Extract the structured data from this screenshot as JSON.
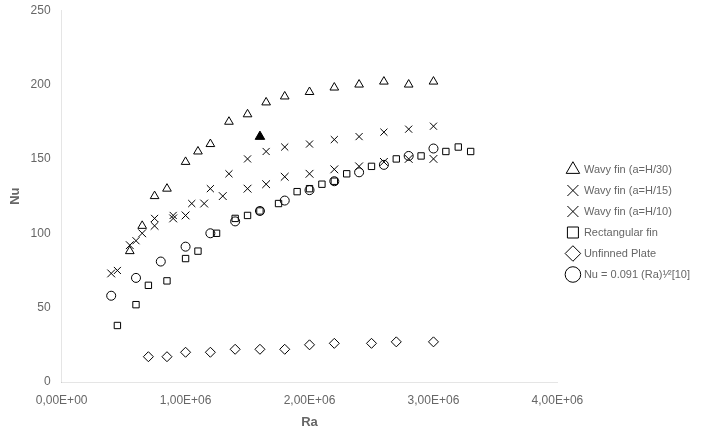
{
  "chart_data": {
    "type": "scatter",
    "xlabel": "Ra",
    "ylabel": "Nu",
    "xlim": [
      0,
      4000000
    ],
    "ylim": [
      0,
      250
    ],
    "xticks": [
      {
        "value": 0,
        "label": "0,00E+00"
      },
      {
        "value": 1000000,
        "label": "1,00E+06"
      },
      {
        "value": 2000000,
        "label": "2,00E+06"
      },
      {
        "value": 3000000,
        "label": "3,00E+06"
      },
      {
        "value": 4000000,
        "label": "4,00E+06"
      }
    ],
    "yticks": [
      0,
      50,
      100,
      150,
      200,
      250
    ],
    "grid": false,
    "legend": "right",
    "series": [
      {
        "name": "Wavy fin (a=H/30)",
        "color": "#000000",
        "marker": "triangle_open",
        "x": [
          550000,
          650000,
          750000,
          850000,
          1000000,
          1100000,
          1200000,
          1350000,
          1500000,
          1650000,
          1800000,
          2000000,
          2200000,
          2400000,
          2600000,
          2800000,
          3000000
        ],
        "values": [
          88,
          105,
          125,
          130,
          148,
          155,
          160,
          175,
          180,
          188,
          192,
          195,
          198,
          200,
          202,
          200,
          202
        ]
      },
      {
        "color": "#000000",
        "marker": "triangle_filled",
        "x": [
          1600000
        ],
        "values": [
          165
        ]
      },
      {
        "name": "Wavy fin (a=H/15)",
        "color": "#000000",
        "marker": "x",
        "x": [
          450000,
          600000,
          750000,
          900000,
          1050000,
          1200000,
          1350000,
          1500000,
          1650000,
          1800000,
          2000000,
          2200000,
          2400000,
          2600000,
          2800000,
          3000000
        ],
        "values": [
          75,
          95,
          110,
          112,
          120,
          130,
          140,
          150,
          155,
          158,
          160,
          163,
          165,
          168,
          170,
          172
        ]
      },
      {
        "name": "Wavy fin (a=H/10)",
        "color": "#000000",
        "marker": "x_bold",
        "x": [
          400000,
          550000,
          650000,
          750000,
          900000,
          1000000,
          1150000,
          1300000,
          1500000,
          1650000,
          1800000,
          2000000,
          2200000,
          2400000,
          2600000,
          2800000,
          3000000
        ],
        "values": [
          73,
          92,
          100,
          105,
          110,
          112,
          120,
          125,
          130,
          133,
          138,
          140,
          143,
          145,
          148,
          150,
          150
        ]
      },
      {
        "name": "Rectangular fin",
        "color": "#000000",
        "marker": "square_open",
        "x": [
          450000,
          600000,
          700000,
          850000,
          1000000,
          1100000,
          1250000,
          1400000,
          1500000,
          1600000,
          1750000,
          1900000,
          2000000,
          2100000,
          2200000,
          2300000,
          2500000,
          2700000,
          2900000,
          3100000,
          3200000,
          3300000
        ],
        "values": [
          38,
          52,
          65,
          68,
          83,
          88,
          100,
          110,
          112,
          115,
          120,
          128,
          130,
          133,
          135,
          140,
          145,
          150,
          152,
          155,
          158,
          155
        ]
      },
      {
        "name": "Unfinned Plate",
        "color": "#000000",
        "marker": "diamond_open",
        "x": [
          700000,
          850000,
          1000000,
          1200000,
          1400000,
          1600000,
          1800000,
          2000000,
          2200000,
          2500000,
          2700000,
          3000000
        ],
        "values": [
          17,
          17,
          20,
          20,
          22,
          22,
          22,
          25,
          26,
          26,
          27,
          27
        ]
      },
      {
        "name": "Nu = 0.091 (Ra)¹⁄²[10]",
        "color": "#000000",
        "marker": "circle_open",
        "x": [
          400000,
          600000,
          800000,
          1000000,
          1200000,
          1400000,
          1600000,
          1800000,
          2000000,
          2200000,
          2400000,
          2600000,
          2800000,
          3000000
        ],
        "values": [
          58,
          70,
          81,
          91,
          100,
          108,
          115,
          122,
          129,
          135,
          141,
          146,
          152,
          157
        ]
      }
    ]
  }
}
